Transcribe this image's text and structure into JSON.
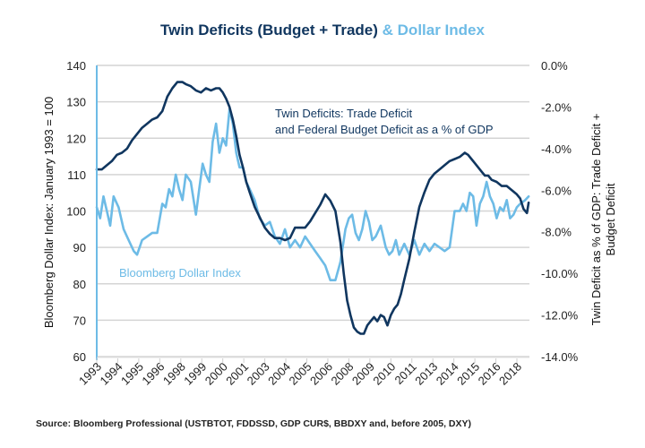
{
  "title": {
    "part1": "Twin Deficits (Budget + Trade)",
    "part2": "& Dollar Index"
  },
  "source": "Source: Bloomberg Professional (USTBTOT, FDDSSD, GDP CUR$, BBDXY and, before 2005, DXY)",
  "colors": {
    "dollar_index": "#6dbbe6",
    "twin_deficits": "#10365f",
    "grid": "#d4d4d4",
    "left_axis": "#6dbbe6"
  },
  "chart_data": {
    "type": "line",
    "title": "Twin Deficits (Budget + Trade) & Dollar Index",
    "xlabel": "",
    "ylabel": "Bloomberg Dollar Index: January 1993 = 100",
    "ylabel_right": "Twin Deficit as % of GDP: Trade Deficit + Budget Deficit",
    "ylabel_right_lines": [
      "Twin Deficit as % of GDP: Trade Deficit +",
      "Budget Deficit"
    ],
    "ylim": [
      60,
      140
    ],
    "ylim_right": [
      -14.0,
      0.0
    ],
    "yticks": [
      140,
      130,
      120,
      110,
      100,
      90,
      80,
      70,
      60
    ],
    "yticks_right": [
      "0.0%",
      "-2.0%",
      "-4.0%",
      "-6.0%",
      "-8.0%",
      "-10.0%",
      "-12.0%",
      "-14.0%"
    ],
    "xlim": [
      1993.0,
      2018.75
    ],
    "xtick_labels": [
      "1993",
      "1994",
      "1995",
      "1996",
      "1998",
      "1999",
      "2000",
      "2001",
      "2003",
      "2004",
      "2005",
      "2006",
      "2008",
      "2009",
      "2010",
      "2011",
      "2013",
      "2014",
      "2015",
      "2016",
      "2018"
    ],
    "grid": true,
    "annotations": [
      {
        "text_lines": [
          "Twin Deficits: Trade Deficit",
          "and Federal Budget Deficit as a % of GDP"
        ],
        "series": "Twin Deficits"
      },
      {
        "text": "Bloomberg Dollar Index",
        "series": "Bloomberg Dollar Index"
      }
    ],
    "series": [
      {
        "name": "Bloomberg Dollar Index",
        "axis": "left",
        "x": [
          1993.0,
          1993.2,
          1993.4,
          1993.6,
          1993.8,
          1994.0,
          1994.3,
          1994.6,
          1994.9,
          1995.2,
          1995.4,
          1995.7,
          1996.0,
          1996.3,
          1996.6,
          1996.9,
          1997.1,
          1997.3,
          1997.5,
          1997.7,
          1997.9,
          1998.1,
          1998.3,
          1998.6,
          1998.9,
          1999.1,
          1999.3,
          1999.5,
          1999.7,
          1999.9,
          2000.1,
          2000.3,
          2000.5,
          2000.7,
          2000.9,
          2001.1,
          2001.3,
          2001.5,
          2001.7,
          2001.9,
          2002.1,
          2002.4,
          2002.7,
          2003.0,
          2003.3,
          2003.6,
          2003.9,
          2004.2,
          2004.5,
          2004.8,
          2005.1,
          2005.4,
          2005.7,
          2006.0,
          2006.3,
          2006.6,
          2006.9,
          2007.2,
          2007.5,
          2007.8,
          2008.0,
          2008.2,
          2008.4,
          2008.6,
          2008.8,
          2009.0,
          2009.2,
          2009.4,
          2009.6,
          2009.9,
          2010.2,
          2010.4,
          2010.6,
          2010.8,
          2011.0,
          2011.3,
          2011.6,
          2011.9,
          2012.2,
          2012.5,
          2012.8,
          2013.1,
          2013.4,
          2013.7,
          2014.0,
          2014.3,
          2014.6,
          2014.8,
          2015.0,
          2015.2,
          2015.4,
          2015.6,
          2015.8,
          2016.0,
          2016.2,
          2016.4,
          2016.6,
          2016.8,
          2017.0,
          2017.2,
          2017.4,
          2017.6,
          2017.8,
          2018.0,
          2018.2,
          2018.5,
          2018.7
        ],
        "values": [
          101,
          98,
          104,
          100,
          96,
          104,
          101,
          95,
          92,
          89,
          88,
          92,
          93,
          94,
          94,
          102,
          101,
          106,
          104,
          110,
          106,
          103,
          110,
          108,
          99,
          106,
          113,
          110,
          108,
          119,
          124,
          116,
          120,
          118,
          128,
          124,
          116,
          112,
          112,
          108,
          106,
          103,
          98,
          96,
          97,
          93,
          91,
          95,
          90,
          92,
          90,
          93,
          91,
          89,
          87,
          85,
          81,
          81,
          86,
          95,
          98,
          99,
          94,
          92,
          95,
          100,
          97,
          92,
          93,
          96,
          90,
          88,
          89,
          92,
          88,
          91,
          88,
          92,
          88,
          91,
          89,
          91,
          90,
          89,
          90,
          100,
          100,
          102,
          100,
          105,
          104,
          96,
          102,
          104,
          108,
          104,
          102,
          98,
          101,
          100,
          103,
          98,
          99,
          101,
          102,
          103,
          104
        ]
      },
      {
        "name": "Twin Deficits",
        "axis": "right",
        "unit": "% of GDP",
        "x": [
          1993.0,
          1993.3,
          1993.6,
          1993.9,
          1994.2,
          1994.5,
          1994.8,
          1995.1,
          1995.4,
          1995.7,
          1996.0,
          1996.3,
          1996.6,
          1996.9,
          1997.2,
          1997.5,
          1997.8,
          1998.1,
          1998.3,
          1998.6,
          1998.9,
          1999.2,
          1999.5,
          1999.8,
          2000.1,
          2000.3,
          2000.5,
          2000.7,
          2000.9,
          2001.1,
          2001.3,
          2001.5,
          2001.7,
          2001.9,
          2002.1,
          2002.4,
          2002.7,
          2003.0,
          2003.3,
          2003.6,
          2003.9,
          2004.2,
          2004.5,
          2004.8,
          2005.1,
          2005.4,
          2005.7,
          2006.0,
          2006.3,
          2006.6,
          2006.9,
          2007.2,
          2007.5,
          2007.7,
          2007.9,
          2008.1,
          2008.3,
          2008.5,
          2008.7,
          2008.9,
          2009.1,
          2009.3,
          2009.5,
          2009.7,
          2009.9,
          2010.1,
          2010.3,
          2010.5,
          2010.7,
          2010.9,
          2011.1,
          2011.3,
          2011.6,
          2011.9,
          2012.2,
          2012.5,
          2012.8,
          2013.1,
          2013.4,
          2013.7,
          2014.0,
          2014.3,
          2014.6,
          2014.9,
          2015.1,
          2015.3,
          2015.5,
          2015.7,
          2015.9,
          2016.1,
          2016.3,
          2016.5,
          2016.8,
          2017.1,
          2017.4,
          2017.7,
          2018.0,
          2018.2,
          2018.4,
          2018.6,
          2018.7
        ],
        "values": [
          -5.0,
          -5.0,
          -4.8,
          -4.6,
          -4.3,
          -4.2,
          -4.0,
          -3.6,
          -3.3,
          -3.0,
          -2.8,
          -2.6,
          -2.5,
          -2.2,
          -1.5,
          -1.1,
          -0.8,
          -0.8,
          -0.9,
          -1.0,
          -1.2,
          -1.3,
          -1.1,
          -1.2,
          -1.1,
          -1.1,
          -1.3,
          -1.6,
          -2.0,
          -2.6,
          -3.4,
          -4.3,
          -4.9,
          -5.6,
          -6.1,
          -6.8,
          -7.3,
          -7.8,
          -8.1,
          -8.3,
          -8.3,
          -8.4,
          -8.3,
          -7.8,
          -7.8,
          -7.8,
          -7.5,
          -7.1,
          -6.7,
          -6.2,
          -6.5,
          -7.0,
          -8.5,
          -10.0,
          -11.3,
          -12.0,
          -12.6,
          -12.8,
          -12.9,
          -12.9,
          -12.5,
          -12.3,
          -12.1,
          -12.3,
          -12.0,
          -12.1,
          -12.5,
          -12.0,
          -11.7,
          -11.5,
          -11.0,
          -10.3,
          -9.3,
          -8.0,
          -6.8,
          -6.1,
          -5.5,
          -5.2,
          -5.0,
          -4.8,
          -4.6,
          -4.5,
          -4.4,
          -4.2,
          -4.3,
          -4.5,
          -4.7,
          -4.9,
          -5.1,
          -5.3,
          -5.3,
          -5.5,
          -5.6,
          -5.8,
          -5.8,
          -6.0,
          -6.2,
          -6.4,
          -6.9,
          -7.1,
          -6.6
        ]
      }
    ]
  }
}
